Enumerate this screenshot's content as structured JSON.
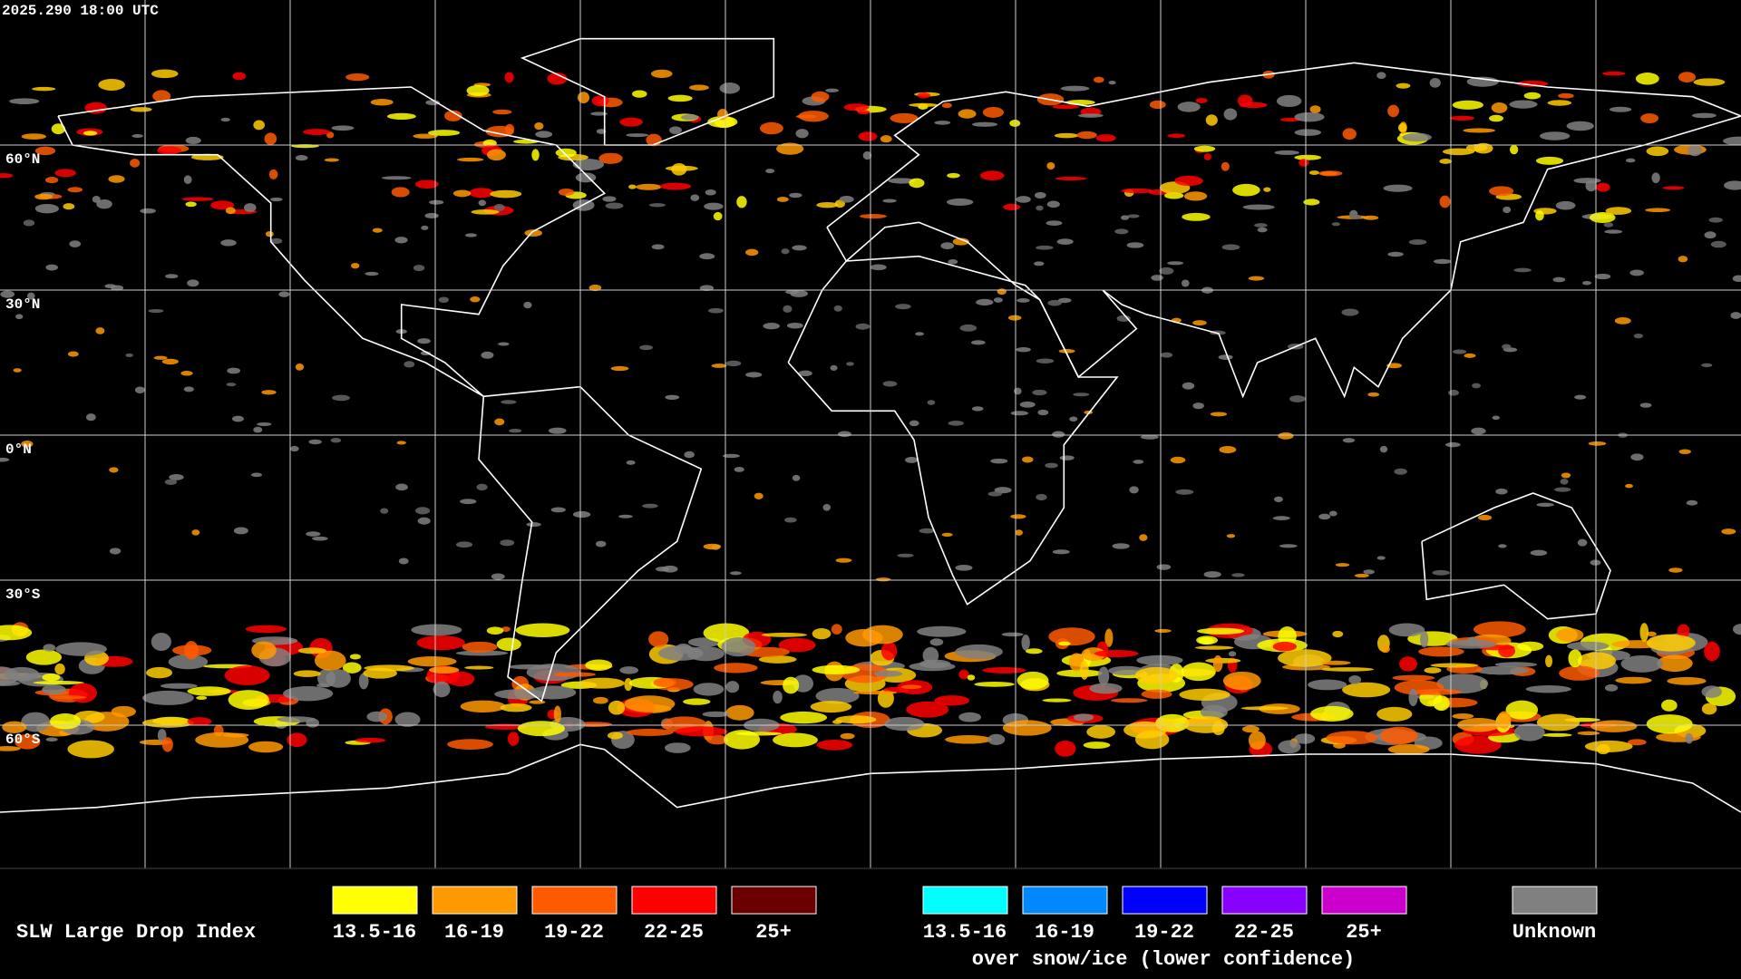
{
  "header": {
    "timestamp": "2025.290 18:00 UTC"
  },
  "map": {
    "lat_labels": [
      "60°N",
      "30°N",
      "0°N",
      "30°S",
      "60°S"
    ]
  },
  "legend": {
    "title": "SLW Large Drop Index",
    "groups": [
      {
        "items": [
          {
            "label": "13.5-16",
            "color": "#ffff00"
          },
          {
            "label": "16-19",
            "color": "#ff9900"
          },
          {
            "label": "19-22",
            "color": "#ff5a00"
          },
          {
            "label": "22-25",
            "color": "#ff0000"
          },
          {
            "label": "25+",
            "color": "#6a0000"
          }
        ]
      },
      {
        "items": [
          {
            "label": "13.5-16",
            "color": "#00ffff"
          },
          {
            "label": "16-19",
            "color": "#0088ff"
          },
          {
            "label": "19-22",
            "color": "#0000ff"
          },
          {
            "label": "22-25",
            "color": "#8800ff"
          },
          {
            "label": "25+",
            "color": "#cc00cc"
          }
        ],
        "caption": "over snow/ice (lower confidence)"
      }
    ],
    "unknown": {
      "label": "Unknown",
      "color": "#808080"
    }
  }
}
